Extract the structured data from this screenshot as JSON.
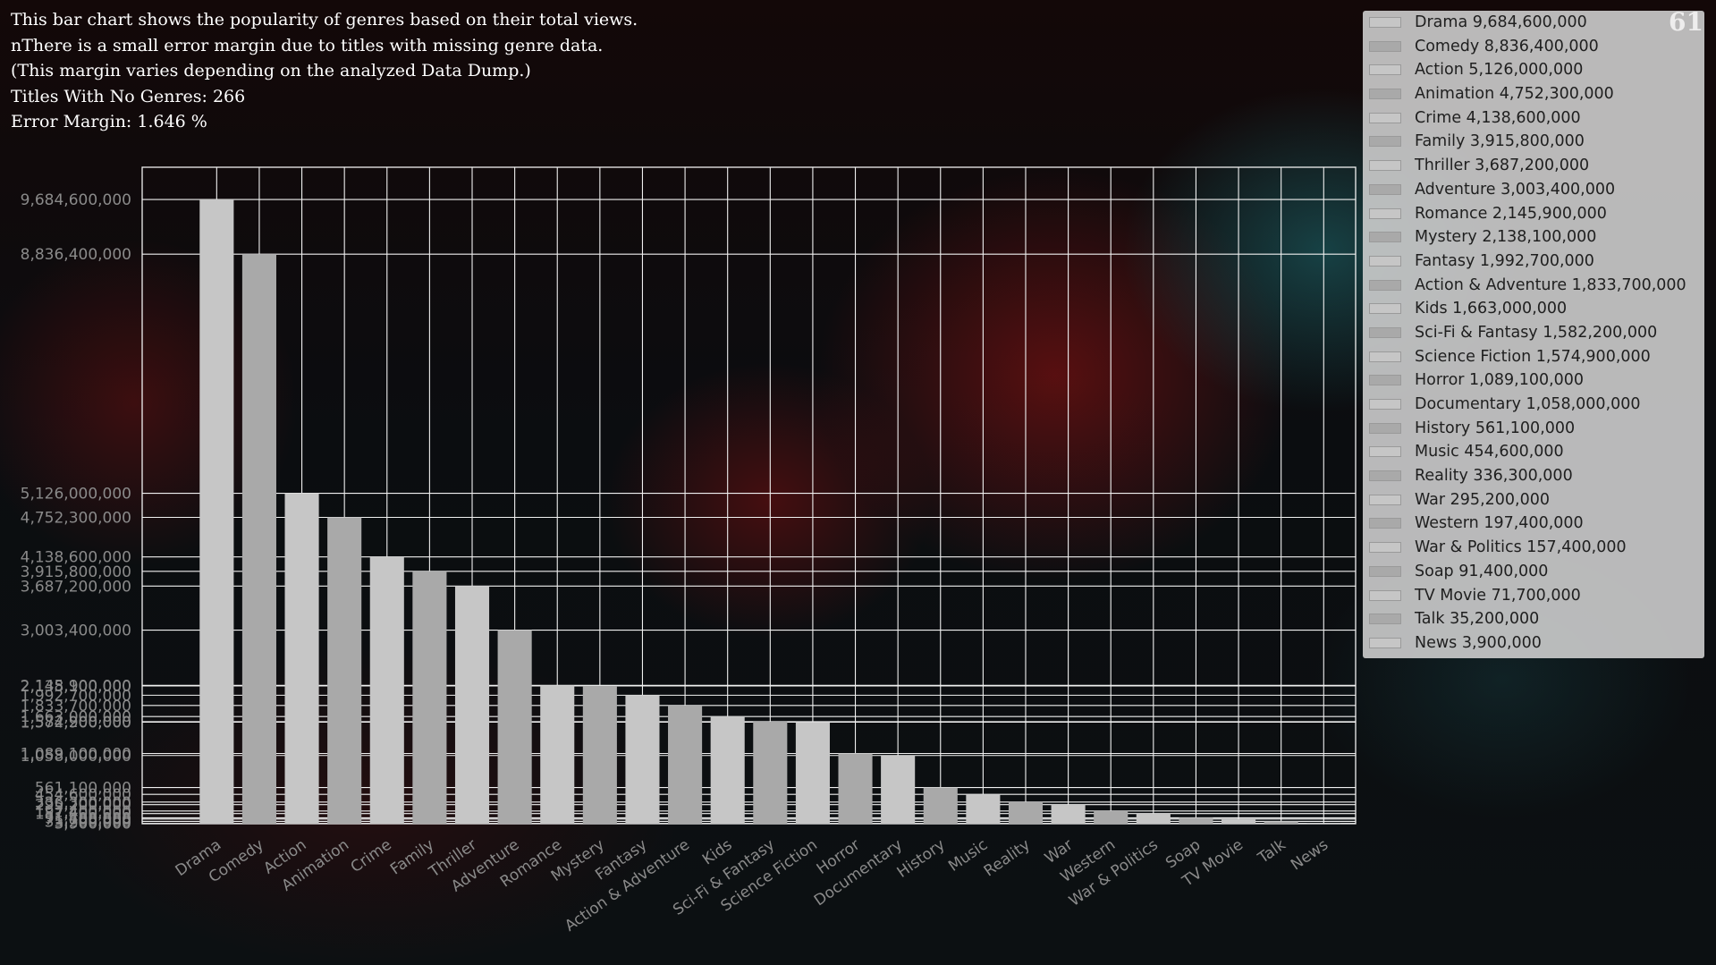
{
  "description": {
    "lines": [
      "This bar chart shows the popularity of genres based on their total views.",
      "nThere is a small error margin due to titles with missing genre data.",
      "(This margin varies depending on the analyzed Data Dump.)",
      "Titles With No Genres: 266",
      "Error Margin: 1.646 %"
    ]
  },
  "frame_counter": "61",
  "chart_data": {
    "type": "bar",
    "title": "",
    "xlabel": "",
    "ylabel": "",
    "ylim": [
      0,
      10184600000
    ],
    "grid": true,
    "legend_position": "top-right",
    "colors": [
      "#c6c6c6",
      "#a9a9a9"
    ],
    "categories": [
      "Drama",
      "Comedy",
      "Action",
      "Animation",
      "Crime",
      "Family",
      "Thriller",
      "Adventure",
      "Romance",
      "Mystery",
      "Fantasy",
      "Action & Adventure",
      "Kids",
      "Sci-Fi & Fantasy",
      "Science Fiction",
      "Horror",
      "Documentary",
      "History",
      "Music",
      "Reality",
      "War",
      "Western",
      "War & Politics",
      "Soap",
      "TV Movie",
      "Talk",
      "News"
    ],
    "values": [
      9684600000,
      8836400000,
      5126000000,
      4752300000,
      4138600000,
      3915800000,
      3687200000,
      3003400000,
      2145900000,
      2138100000,
      1992700000,
      1833700000,
      1663000000,
      1582200000,
      1574900000,
      1089100000,
      1058000000,
      561100000,
      454600000,
      336300000,
      295200000,
      197400000,
      157400000,
      91400000,
      71700000,
      35200000,
      3900000
    ],
    "y_tick_labels": [
      "9,684,600,000",
      "8,836,400,000",
      "5,126,000,000",
      "4,752,300,000",
      "4,138,600,000",
      "3,915,800,000",
      "3,687,200,000",
      "3,003,400,000",
      "2,145,900,000",
      "2,138,100,000",
      "1,992,700,000",
      "1,833,700,000",
      "1,663,000,000",
      "1,582,200,000",
      "1,574,900,000",
      "1,089,100,000",
      "1,058,000,000",
      "561,100,000",
      "454,600,000",
      "336,300,000",
      "295,200,000",
      "197,400,000",
      "157,400,000",
      "91,400,000",
      "71,700,000",
      "35,200,000",
      "3,900,000"
    ],
    "legend": [
      "Drama 9,684,600,000",
      "Comedy 8,836,400,000",
      "Action 5,126,000,000",
      "Animation 4,752,300,000",
      "Crime 4,138,600,000",
      "Family 3,915,800,000",
      "Thriller 3,687,200,000",
      "Adventure 3,003,400,000",
      "Romance 2,145,900,000",
      "Mystery 2,138,100,000",
      "Fantasy 1,992,700,000",
      "Action & Adventure 1,833,700,000",
      "Kids 1,663,000,000",
      "Sci-Fi & Fantasy 1,582,200,000",
      "Science Fiction 1,574,900,000",
      "Horror 1,089,100,000",
      "Documentary 1,058,000,000",
      "History 561,100,000",
      "Music 454,600,000",
      "Reality 336,300,000",
      "War 295,200,000",
      "Western 197,400,000",
      "War & Politics 157,400,000",
      "Soap 91,400,000",
      "TV Movie 71,700,000",
      "Talk 35,200,000",
      "News 3,900,000"
    ]
  }
}
